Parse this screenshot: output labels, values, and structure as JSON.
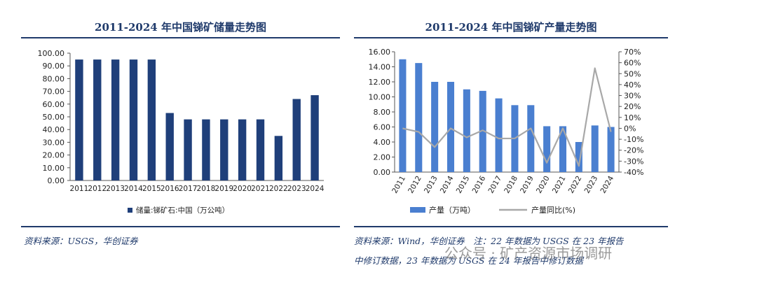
{
  "left": {
    "title": "2011-2024 年中国锑矿储量走势图",
    "source": "资料来源：USGS，华创证券",
    "legend_label": "储量:锑矿石:中国（万公吨）",
    "bar_color": "#1f3f7a"
  },
  "right": {
    "title": "2011-2024 年中国锑矿产量走势图",
    "source_line1": "资料来源：Wind，华创证券　注：22 年数据为 USGS 在 23 年报告",
    "source_line2": "中修订数据，23 年数据为 USGS 在 24 年报告中修订数据",
    "legend_bar_label": "产量（万吨）",
    "legend_line_label": "产量同比(%)",
    "bar_color": "#4a7fd0",
    "line_color": "#a8a8a8"
  },
  "watermark": {
    "text": "公众号 · 矿产资源市场调研"
  },
  "chart_data": [
    {
      "type": "bar",
      "title": "2011-2024 年中国锑矿储量走势图",
      "categories": [
        "2011",
        "2012",
        "2013",
        "2014",
        "2015",
        "2016",
        "2017",
        "2018",
        "2019",
        "2020",
        "2021",
        "2022",
        "2023",
        "2024"
      ],
      "series": [
        {
          "name": "储量:锑矿石:中国（万公吨）",
          "values": [
            95,
            95,
            95,
            95,
            95,
            53,
            48,
            48,
            48,
            48,
            48,
            35,
            64,
            67
          ]
        }
      ],
      "ylim": [
        0,
        100
      ],
      "yticks": [
        0,
        10,
        20,
        30,
        40,
        50,
        60,
        70,
        80,
        90,
        100
      ],
      "ytick_labels": [
        "0.00",
        "10.00",
        "20.00",
        "30.00",
        "40.00",
        "50.00",
        "60.00",
        "70.00",
        "80.00",
        "90.00",
        "100.00"
      ],
      "xlabel": "",
      "ylabel": "",
      "legend": "bottom"
    },
    {
      "type": "bar",
      "title": "2011-2024 年中国锑矿产量走势图",
      "categories": [
        "2011",
        "2012",
        "2013",
        "2014",
        "2015",
        "2016",
        "2017",
        "2018",
        "2019",
        "2020",
        "2021",
        "2022",
        "2023",
        "2024"
      ],
      "series": [
        {
          "name": "产量（万吨）",
          "type": "bar",
          "axis": "left",
          "values": [
            15,
            14.5,
            12,
            12,
            11,
            10.8,
            9.8,
            8.9,
            8.9,
            6.1,
            6.1,
            4,
            6.2,
            6
          ]
        },
        {
          "name": "产量同比(%)",
          "type": "line",
          "axis": "right",
          "values": [
            0,
            -3.3,
            -17.2,
            0,
            -8.3,
            -1.8,
            -9.3,
            -9.2,
            0,
            -31.5,
            0,
            -34.4,
            55,
            -3.2
          ]
        }
      ],
      "ylim": [
        0,
        16
      ],
      "yticks": [
        0,
        2,
        4,
        6,
        8,
        10,
        12,
        14,
        16
      ],
      "ytick_labels": [
        "0.00",
        "2.00",
        "4.00",
        "6.00",
        "8.00",
        "10.00",
        "12.00",
        "14.00",
        "16.00"
      ],
      "y2lim": [
        -40,
        70
      ],
      "y2ticks": [
        -40,
        -30,
        -20,
        -10,
        0,
        10,
        20,
        30,
        40,
        50,
        60,
        70
      ],
      "y2tick_labels": [
        "-40%",
        "-30%",
        "-20%",
        "-10%",
        "0%",
        "10%",
        "20%",
        "30%",
        "40%",
        "50%",
        "60%",
        "70%"
      ],
      "legend": "bottom"
    }
  ]
}
